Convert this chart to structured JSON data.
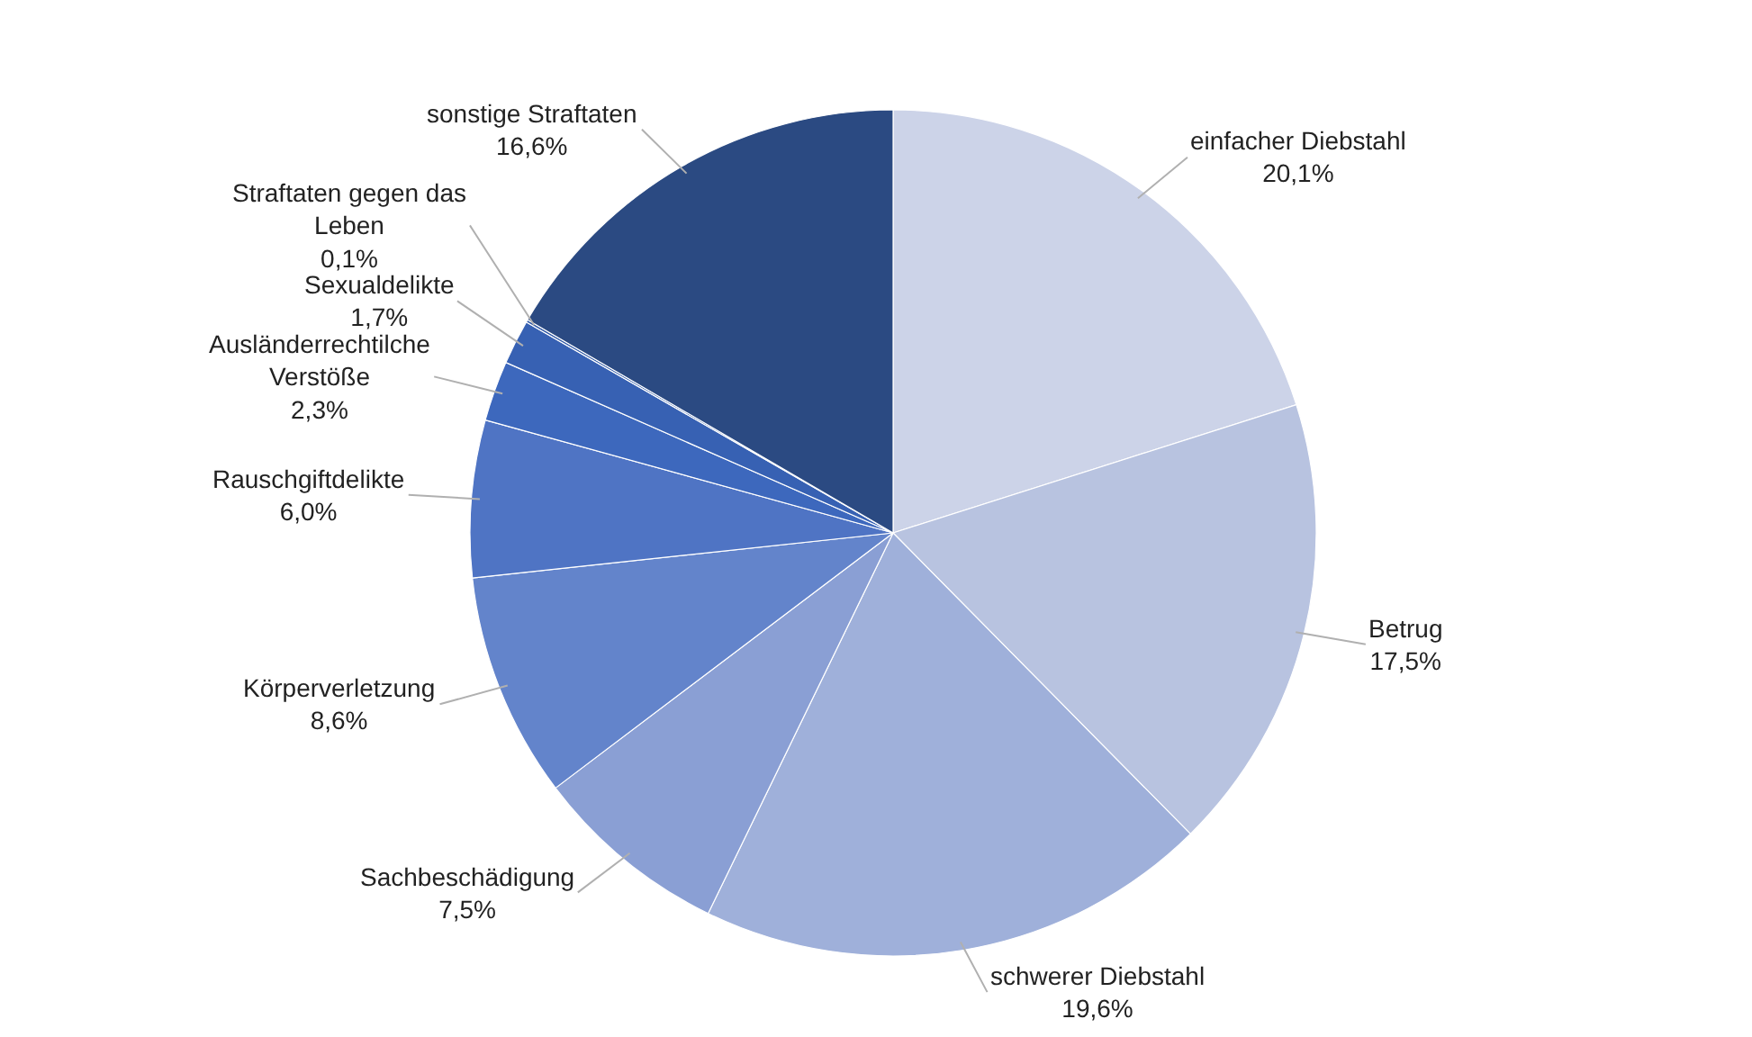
{
  "chart_data": {
    "type": "pie",
    "categories": [
      "einfacher Diebstahl",
      "Betrug",
      "schwerer Diebstahl",
      "Sachbeschädigung",
      "Körperverletzung",
      "Rauschgiftdelikte",
      "Ausländerrechtilche Verstöße",
      "Sexualdelikte",
      "Straftaten gegen das Leben",
      "sonstige Straftaten"
    ],
    "values": [
      20.1,
      17.5,
      19.6,
      7.5,
      8.6,
      6.0,
      2.3,
      1.7,
      0.1,
      16.6
    ],
    "value_labels": [
      "20,1%",
      "17,5%",
      "19,6%",
      "7,5%",
      "8,6%",
      "6,0%",
      "2,3%",
      "1,7%",
      "0,1%",
      "16,6%"
    ],
    "colors": [
      "#ccd3e8",
      "#b8c3e0",
      "#9fb0da",
      "#8a9fd4",
      "#6384cb",
      "#4f74c4",
      "#3d68bd",
      "#3761b3",
      "#2f58a6",
      "#2b4a82"
    ]
  }
}
